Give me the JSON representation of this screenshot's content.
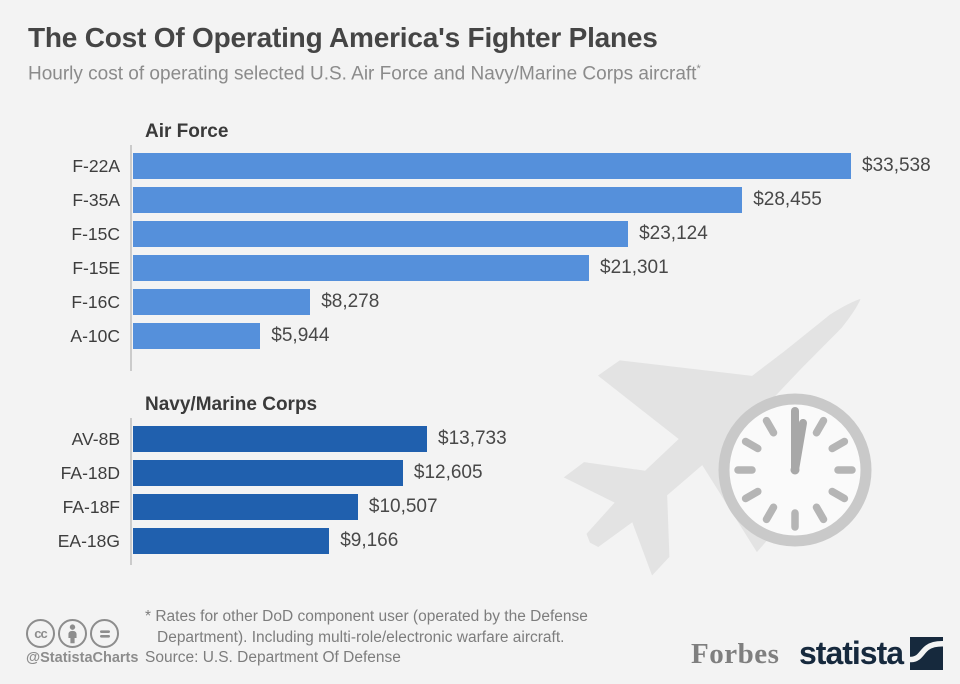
{
  "chart_data": {
    "type": "bar",
    "orientation": "horizontal",
    "title": "The Cost Of Operating America's Fighter Planes",
    "subtitle": "Hourly cost of operating selected U.S. Air Force and Navy/Marine Corps aircraft",
    "subtitle_footnote_marker": "*",
    "value_prefix": "$",
    "value_axis": {
      "min": 0,
      "max": 33538,
      "gridlines": false,
      "axis_line": true
    },
    "legend": "none",
    "groups": [
      {
        "label": "Air Force",
        "bar_color": "#5590DB",
        "items": [
          {
            "category": "F-22A",
            "value": 33538,
            "value_label": "$33,538"
          },
          {
            "category": "F-35A",
            "value": 28455,
            "value_label": "$28,455"
          },
          {
            "category": "F-15C",
            "value": 23124,
            "value_label": "$23,124"
          },
          {
            "category": "F-15E",
            "value": 21301,
            "value_label": "$21,301"
          },
          {
            "category": "F-16C",
            "value": 8278,
            "value_label": "$8,278"
          },
          {
            "category": "A-10C",
            "value": 5944,
            "value_label": "$5,944"
          }
        ]
      },
      {
        "label": "Navy/Marine Corps",
        "bar_color": "#2060AE",
        "items": [
          {
            "category": "AV-8B",
            "value": 13733,
            "value_label": "$13,733"
          },
          {
            "category": "FA-18D",
            "value": 12605,
            "value_label": "$12,605"
          },
          {
            "category": "FA-18F",
            "value": 10507,
            "value_label": "$10,507"
          },
          {
            "category": "EA-18G",
            "value": 9166,
            "value_label": "$9,166"
          }
        ]
      }
    ]
  },
  "watermark": {
    "icons": [
      "fighter-jet-silhouette",
      "clock"
    ],
    "color": "#e3e3e3"
  },
  "footer": {
    "license_icons": [
      "cc",
      "attribution",
      "equals"
    ],
    "handle": "@StatistaCharts",
    "footnote_line1": "* Rates for other DoD component user (operated by the Defense",
    "footnote_line2": "Department). Including multi-role/electronic warfare aircraft.",
    "source": "Source: U.S. Department Of Defense",
    "brand_left": "Forbes",
    "brand_right": "statista"
  }
}
